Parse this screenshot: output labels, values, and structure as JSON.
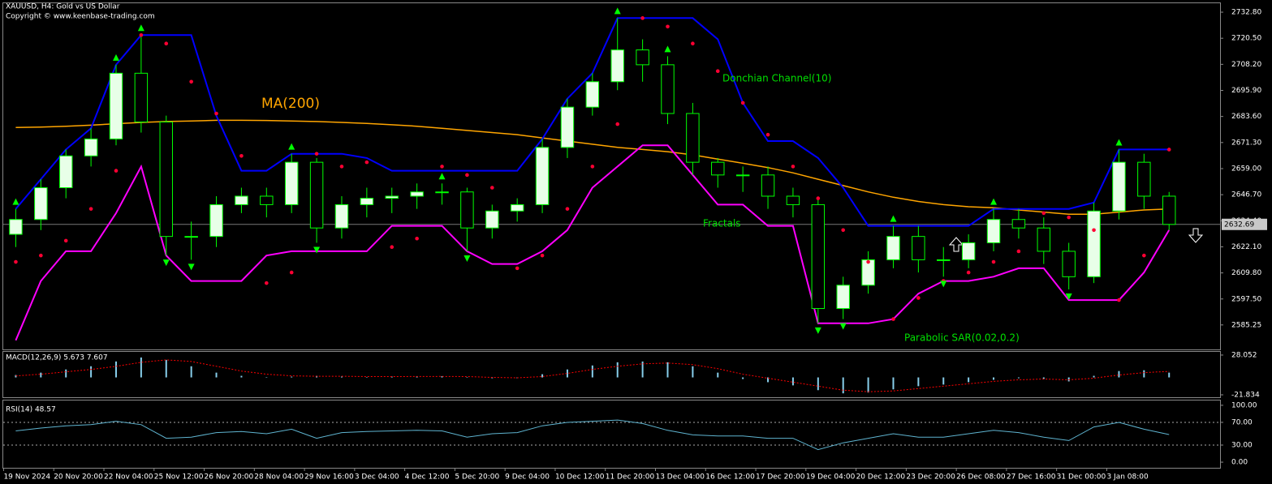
{
  "chart_data": [
    {
      "type": "candlestick",
      "title": "XAUUSD, H4:  Gold vs US Dollar",
      "subtitle": "Copyright © www.keenbase-trading.com",
      "categories": [
        "19 Nov 2024",
        null,
        "20 Nov 20:00",
        null,
        "22 Nov 04:00",
        null,
        "25 Nov 12:00",
        null,
        "26 Nov 20:00",
        null,
        "28 Nov 04:00",
        null,
        "29 Nov 16:00",
        null,
        "3 Dec 04:00",
        null,
        "4 Dec 12:00",
        null,
        "5 Dec 20:00",
        null,
        "9 Dec 04:00",
        null,
        "10 Dec 12:00",
        null,
        "11 Dec 20:00",
        null,
        "13 Dec 04:00",
        null,
        "16 Dec 12:00",
        null,
        "17 Dec 20:00",
        null,
        "19 Dec 04:00",
        null,
        "20 Dec 12:00",
        null,
        "23 Dec 20:00",
        null,
        "26 Dec 08:00",
        null,
        "27 Dec 16:00",
        null,
        "31 Dec 00:00",
        null,
        "3 Jan 08:00",
        null,
        null
      ],
      "open": [
        2628,
        2635,
        2650,
        2665,
        2673,
        2704,
        2681,
        2627,
        2627,
        2642,
        2646,
        2642,
        2662,
        2631,
        2642,
        2645,
        2646,
        2648,
        2648,
        2631,
        2639,
        2642,
        2669,
        2688,
        2700,
        2715,
        2708,
        2685,
        2662,
        2656,
        2656,
        2646,
        2642,
        2593,
        2604,
        2616,
        2627,
        2616,
        2616,
        2624,
        2635,
        2631,
        2620,
        2608,
        2639,
        2662,
        2646
      ],
      "high": [
        2640,
        2654,
        2668,
        2678,
        2708,
        2722,
        2684,
        2634,
        2646,
        2650,
        2650,
        2666,
        2664,
        2646,
        2650,
        2650,
        2652,
        2652,
        2650,
        2642,
        2645,
        2673,
        2692,
        2704,
        2730,
        2720,
        2712,
        2690,
        2664,
        2660,
        2660,
        2650,
        2645,
        2608,
        2620,
        2632,
        2632,
        2622,
        2628,
        2640,
        2640,
        2636,
        2624,
        2643,
        2668,
        2666,
        2648
      ],
      "low": [
        2622,
        2630,
        2645,
        2660,
        2670,
        2676,
        2618,
        2616,
        2622,
        2638,
        2636,
        2638,
        2624,
        2626,
        2636,
        2638,
        2640,
        2642,
        2620,
        2626,
        2634,
        2638,
        2664,
        2684,
        2696,
        2700,
        2680,
        2656,
        2650,
        2648,
        2640,
        2636,
        2586,
        2588,
        2600,
        2612,
        2610,
        2608,
        2612,
        2620,
        2626,
        2614,
        2602,
        2605,
        2635,
        2640,
        2630
      ],
      "close": [
        2635,
        2650,
        2665,
        2673,
        2704,
        2681,
        2627,
        2627,
        2642,
        2646,
        2642,
        2662,
        2631,
        2642,
        2645,
        2646,
        2648,
        2648,
        2631,
        2639,
        2642,
        2669,
        2688,
        2700,
        2715,
        2708,
        2685,
        2662,
        2656,
        2656,
        2646,
        2642,
        2593,
        2604,
        2616,
        2627,
        2616,
        2616,
        2624,
        2635,
        2631,
        2620,
        2608,
        2639,
        2662,
        2646,
        2632.69
      ],
      "up_color": "#e8ffe8",
      "down_color": "#000000",
      "wick_color": "#00ff00",
      "ylim": [
        2573.7,
        2737.4
      ],
      "yticks": [
        {
          "value": 2732.8,
          "label": "2732.80"
        },
        {
          "value": 2720.5,
          "label": "2720.50"
        },
        {
          "value": 2708.2,
          "label": "2708.20"
        },
        {
          "value": 2695.9,
          "label": "2695.90"
        },
        {
          "value": 2683.6,
          "label": "2683.60"
        },
        {
          "value": 2671.3,
          "label": "2671.30"
        },
        {
          "value": 2659,
          "label": "2659.00"
        },
        {
          "value": 2646.7,
          "label": "2646.70"
        },
        {
          "value": 2634.4,
          "label": "2634.40"
        },
        {
          "value": 2622.1,
          "label": "2622.10"
        },
        {
          "value": 2609.8,
          "label": "2609.80"
        },
        {
          "value": 2597.5,
          "label": "2597.50"
        },
        {
          "value": 2585.25,
          "label": "2585.25"
        }
      ],
      "last_price": 2632.69,
      "ma": {
        "name": "MA(200)",
        "color": "#ffa500",
        "values": [
          2678.4,
          2678.6,
          2679.0,
          2679.5,
          2680.2,
          2680.8,
          2681.2,
          2681.5,
          2681.8,
          2681.8,
          2681.7,
          2681.5,
          2681.2,
          2680.8,
          2680.3,
          2679.7,
          2679.0,
          2678.0,
          2677.0,
          2676.0,
          2675.0,
          2673.5,
          2672.0,
          2670.5,
          2669.0,
          2668.0,
          2667.0,
          2665.5,
          2663.5,
          2661.5,
          2659.5,
          2657.0,
          2654.0,
          2651.0,
          2648.0,
          2645.5,
          2643.5,
          2642.0,
          2641.0,
          2640.5,
          2639.5,
          2638.5,
          2637.5,
          2637.5,
          2638.5,
          2639.5,
          2640.0
        ]
      },
      "donchian": {
        "name": "Donchian Channel(10)",
        "upper_color": "#0000ff",
        "lower_color": "#ff00ff",
        "upper": [
          2640,
          2654,
          2668,
          2678,
          2708,
          2722,
          2722,
          2722,
          2684,
          2658,
          2658,
          2666,
          2666,
          2666,
          2664,
          2658,
          2658,
          2658,
          2658,
          2658,
          2658,
          2673,
          2692,
          2704,
          2730,
          2730,
          2730,
          2730,
          2720,
          2690,
          2672,
          2672,
          2664,
          2650,
          2632,
          2632,
          2632,
          2632,
          2632,
          2640,
          2640,
          2640,
          2640,
          2643,
          2668,
          2668,
          2668
        ],
        "lower": [
          2578,
          2606,
          2620,
          2620,
          2638,
          2660,
          2618,
          2606,
          2606,
          2606,
          2618,
          2620,
          2620,
          2620,
          2620,
          2632,
          2632,
          2632,
          2620,
          2614,
          2614,
          2620,
          2630,
          2650,
          2660,
          2670,
          2670,
          2656,
          2642,
          2642,
          2632,
          2632,
          2586,
          2586,
          2586,
          2588,
          2600,
          2606,
          2606,
          2608,
          2612,
          2612,
          2597,
          2597,
          2597,
          2610,
          2630
        ]
      },
      "sar": {
        "name": "Parabolic SAR(0.02,0.2)",
        "color": "#ff0033",
        "values": [
          2615,
          2618,
          2625,
          2640,
          2658,
          2722,
          2718,
          2700,
          2685,
          2665,
          2605,
          2610,
          2666,
          2660,
          2662,
          2622,
          2626,
          2660,
          2656,
          2650,
          2612,
          2618,
          2640,
          2660,
          2680,
          2730,
          2726,
          2718,
          2705,
          2690,
          2675,
          2660,
          2645,
          2630,
          2615,
          2588,
          2598,
          2606,
          2610,
          2615,
          2620,
          2638,
          2636,
          2630,
          2597,
          2618,
          2668
        ]
      },
      "fractals": {
        "name": "Fractals",
        "color": "#00ff00",
        "up": [
          0,
          4,
          5,
          11,
          17,
          24,
          26,
          35,
          39,
          44
        ],
        "down": [
          6,
          7,
          12,
          18,
          32,
          33,
          37,
          42
        ]
      }
    },
    {
      "type": "macd",
      "title": "MACD(12,26,9) 5.673 7.607",
      "ylim": [
        -24.9,
        33.1
      ],
      "yticks": [
        28.052,
        -21.834
      ],
      "histogram": {
        "color": "#87ceeb",
        "values": [
          3,
          6,
          10,
          14,
          20,
          25,
          22,
          14,
          6,
          2,
          0,
          1,
          2,
          1,
          0.5,
          1,
          1.5,
          1.5,
          0.5,
          -1,
          -1,
          4,
          10,
          15,
          19,
          20,
          19,
          14,
          6,
          -2,
          -6,
          -10,
          -16,
          -20,
          -19,
          -15,
          -11,
          -9,
          -6,
          -3,
          -1,
          -2,
          -5,
          2,
          8,
          9,
          6
        ]
      },
      "signal": {
        "color": "#ff0000",
        "values": [
          2,
          4,
          7,
          10,
          14,
          19,
          22,
          20,
          14,
          8,
          4,
          2,
          1.5,
          1.5,
          1,
          1,
          1.2,
          1.3,
          1,
          0,
          -0.5,
          1,
          5,
          10,
          14,
          17,
          18,
          16,
          11,
          4,
          -1,
          -6,
          -11,
          -16,
          -18,
          -17,
          -14,
          -11,
          -8,
          -5,
          -3,
          -2,
          -3,
          -1,
          3,
          6,
          7.6
        ]
      }
    },
    {
      "type": "line",
      "title": "RSI(14) 48.57",
      "color": "#5fb4d0",
      "ylim": [
        -9.9,
        107
      ],
      "yticks": [
        {
          "value": 100,
          "label": "100.00"
        },
        {
          "value": 70,
          "label": "70.00"
        },
        {
          "value": 30,
          "label": "30.00"
        },
        {
          "value": 0,
          "label": "0.00"
        }
      ],
      "levels": [
        70,
        30
      ],
      "values": [
        55,
        60,
        64,
        66,
        72,
        66,
        42,
        44,
        52,
        54,
        50,
        58,
        42,
        52,
        54,
        55,
        56,
        55,
        44,
        50,
        52,
        64,
        70,
        72,
        74,
        68,
        56,
        48,
        46,
        46,
        42,
        42,
        22,
        34,
        42,
        50,
        44,
        44,
        50,
        56,
        52,
        44,
        38,
        62,
        70,
        58,
        48.57
      ]
    }
  ]
}
